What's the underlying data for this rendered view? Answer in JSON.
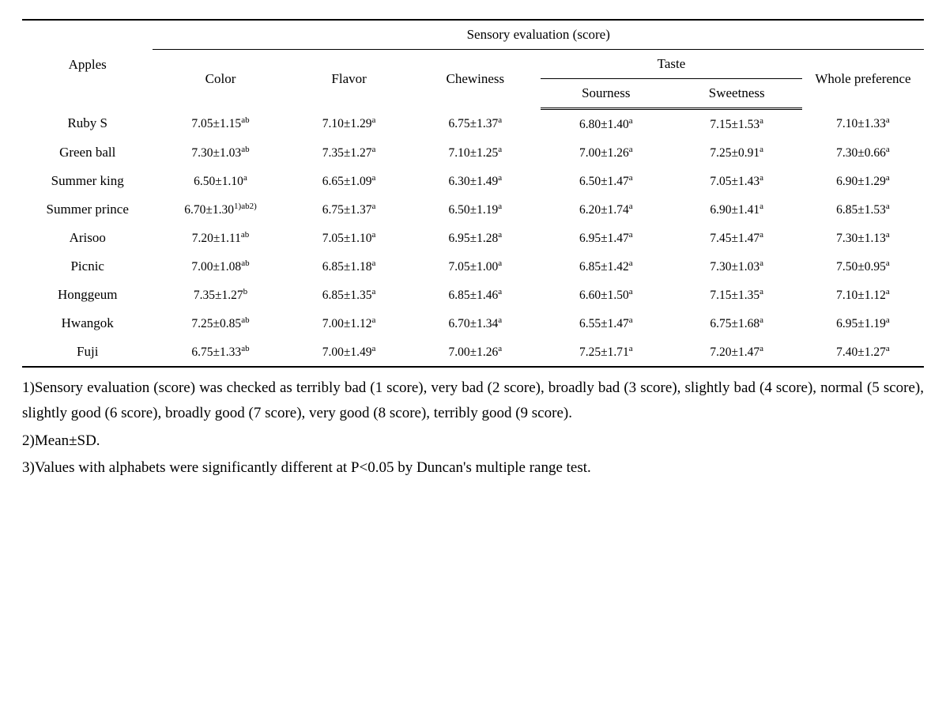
{
  "colors": {
    "text": "#000000",
    "background": "#ffffff",
    "rule": "#000000"
  },
  "header": {
    "row_label": "Apples",
    "super_header": "Sensory evaluation (score)",
    "taste_group": "Taste",
    "columns": {
      "color": "Color",
      "flavor": "Flavor",
      "chewiness": "Chewiness",
      "sourness": "Sourness",
      "sweetness": "Sweetness",
      "whole_pref": "Whole preference"
    }
  },
  "rows": [
    {
      "name": "Ruby S",
      "cells": [
        {
          "v": "7.05±1.15",
          "s": "ab"
        },
        {
          "v": "7.10±1.29",
          "s": "a"
        },
        {
          "v": "6.75±1.37",
          "s": "a"
        },
        {
          "v": "6.80±1.40",
          "s": "a"
        },
        {
          "v": "7.15±1.53",
          "s": "a"
        },
        {
          "v": "7.10±1.33",
          "s": "a"
        }
      ]
    },
    {
      "name": "Green ball",
      "cells": [
        {
          "v": "7.30±1.03",
          "s": "ab"
        },
        {
          "v": "7.35±1.27",
          "s": "a"
        },
        {
          "v": "7.10±1.25",
          "s": "a"
        },
        {
          "v": "7.00±1.26",
          "s": "a"
        },
        {
          "v": "7.25±0.91",
          "s": "a"
        },
        {
          "v": "7.30±0.66",
          "s": "a"
        }
      ]
    },
    {
      "name": "Summer king",
      "cells": [
        {
          "v": "6.50±1.10",
          "s": "a"
        },
        {
          "v": "6.65±1.09",
          "s": "a"
        },
        {
          "v": "6.30±1.49",
          "s": "a"
        },
        {
          "v": "6.50±1.47",
          "s": "a"
        },
        {
          "v": "7.05±1.43",
          "s": "a"
        },
        {
          "v": "6.90±1.29",
          "s": "a"
        }
      ]
    },
    {
      "name": "Summer prince",
      "cells": [
        {
          "v": "6.70±1.30",
          "s": "1)ab2)"
        },
        {
          "v": "6.75±1.37",
          "s": "a"
        },
        {
          "v": "6.50±1.19",
          "s": "a"
        },
        {
          "v": "6.20±1.74",
          "s": "a"
        },
        {
          "v": "6.90±1.41",
          "s": "a"
        },
        {
          "v": "6.85±1.53",
          "s": "a"
        }
      ]
    },
    {
      "name": "Arisoo",
      "cells": [
        {
          "v": "7.20±1.11",
          "s": "ab"
        },
        {
          "v": "7.05±1.10",
          "s": "a"
        },
        {
          "v": "6.95±1.28",
          "s": "a"
        },
        {
          "v": "6.95±1.47",
          "s": "a"
        },
        {
          "v": "7.45±1.47",
          "s": "a"
        },
        {
          "v": "7.30±1.13",
          "s": "a"
        }
      ]
    },
    {
      "name": "Picnic",
      "cells": [
        {
          "v": "7.00±1.08",
          "s": "ab"
        },
        {
          "v": "6.85±1.18",
          "s": "a"
        },
        {
          "v": "7.05±1.00",
          "s": "a"
        },
        {
          "v": "6.85±1.42",
          "s": "a"
        },
        {
          "v": "7.30±1.03",
          "s": "a"
        },
        {
          "v": "7.50±0.95",
          "s": "a"
        }
      ]
    },
    {
      "name": "Honggeum",
      "cells": [
        {
          "v": "7.35±1.27",
          "s": "b"
        },
        {
          "v": "6.85±1.35",
          "s": "a"
        },
        {
          "v": "6.85±1.46",
          "s": "a"
        },
        {
          "v": "6.60±1.50",
          "s": "a"
        },
        {
          "v": "7.15±1.35",
          "s": "a"
        },
        {
          "v": "7.10±1.12",
          "s": "a"
        }
      ]
    },
    {
      "name": "Hwangok",
      "cells": [
        {
          "v": "7.25±0.85",
          "s": "ab"
        },
        {
          "v": "7.00±1.12",
          "s": "a"
        },
        {
          "v": "6.70±1.34",
          "s": "a"
        },
        {
          "v": "6.55±1.47",
          "s": "a"
        },
        {
          "v": "6.75±1.68",
          "s": "a"
        },
        {
          "v": "6.95±1.19",
          "s": "a"
        }
      ]
    },
    {
      "name": "Fuji",
      "cells": [
        {
          "v": "6.75±1.33",
          "s": "ab"
        },
        {
          "v": "7.00±1.49",
          "s": "a"
        },
        {
          "v": "7.00±1.26",
          "s": "a"
        },
        {
          "v": "7.25±1.71",
          "s": "a"
        },
        {
          "v": "7.20±1.47",
          "s": "a"
        },
        {
          "v": "7.40±1.27",
          "s": "a"
        }
      ]
    }
  ],
  "footnotes": [
    "1)Sensory evaluation (score) was checked as terribly bad (1 score), very bad (2 score), broadly bad (3 score), slightly bad (4 score), normal (5 score), slightly good (6 score), broadly good (7 score), very good (8 score),  terribly good (9 score).",
    "2)Mean±SD.",
    "3)Values with alphabets were significantly different at P<0.05 by Duncan's multiple range test."
  ]
}
